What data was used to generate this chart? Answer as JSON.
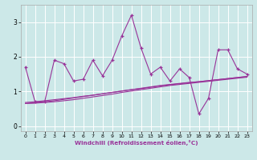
{
  "title": "",
  "xlabel": "Windchill (Refroidissement éolien,°C)",
  "ylabel": "",
  "background_color": "#cce8e8",
  "grid_color": "#ffffff",
  "line_color": "#993399",
  "x_data": [
    0,
    1,
    2,
    3,
    4,
    5,
    6,
    7,
    8,
    9,
    10,
    11,
    12,
    13,
    14,
    15,
    16,
    17,
    18,
    19,
    20,
    21,
    22,
    23
  ],
  "y_main": [
    1.7,
    0.7,
    0.7,
    1.9,
    1.8,
    1.3,
    1.35,
    1.9,
    1.45,
    1.9,
    2.6,
    3.2,
    2.25,
    1.5,
    1.7,
    1.3,
    1.65,
    1.4,
    0.35,
    0.8,
    2.2,
    2.2,
    1.65,
    1.5
  ],
  "y_reg1": [
    0.68,
    0.7,
    0.73,
    0.76,
    0.79,
    0.82,
    0.86,
    0.89,
    0.93,
    0.97,
    1.01,
    1.05,
    1.08,
    1.12,
    1.16,
    1.19,
    1.22,
    1.25,
    1.28,
    1.31,
    1.34,
    1.37,
    1.4,
    1.43
  ],
  "y_reg2": [
    0.65,
    0.67,
    0.7,
    0.73,
    0.77,
    0.81,
    0.85,
    0.89,
    0.93,
    0.97,
    1.01,
    1.05,
    1.09,
    1.13,
    1.17,
    1.2,
    1.23,
    1.26,
    1.28,
    1.31,
    1.34,
    1.37,
    1.4,
    1.43
  ],
  "y_reg3": [
    0.65,
    0.66,
    0.68,
    0.7,
    0.73,
    0.76,
    0.8,
    0.84,
    0.88,
    0.92,
    0.97,
    1.01,
    1.05,
    1.09,
    1.13,
    1.17,
    1.2,
    1.23,
    1.26,
    1.29,
    1.32,
    1.35,
    1.38,
    1.41
  ],
  "ylim": [
    -0.15,
    3.5
  ],
  "xlim": [
    -0.5,
    23.5
  ],
  "yticks": [
    0,
    1,
    2,
    3
  ],
  "xticks": [
    0,
    1,
    2,
    3,
    4,
    5,
    6,
    7,
    8,
    9,
    10,
    11,
    12,
    13,
    14,
    15,
    16,
    17,
    18,
    19,
    20,
    21,
    22,
    23
  ]
}
